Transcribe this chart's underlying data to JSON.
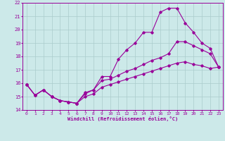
{
  "xlabel": "Windchill (Refroidissement éolien,°C)",
  "ylabel": "",
  "bg_color": "#cce9e9",
  "grid_color": "#aacccc",
  "line_color": "#990099",
  "xlim": [
    -0.5,
    23.5
  ],
  "ylim": [
    14,
    22
  ],
  "xticks": [
    0,
    1,
    2,
    3,
    4,
    5,
    6,
    7,
    8,
    9,
    10,
    11,
    12,
    13,
    14,
    15,
    16,
    17,
    18,
    19,
    20,
    21,
    22,
    23
  ],
  "yticks": [
    14,
    15,
    16,
    17,
    18,
    19,
    20,
    21,
    22
  ],
  "line1_x": [
    0,
    1,
    2,
    3,
    4,
    5,
    6,
    7,
    8,
    9,
    10,
    11,
    12,
    13,
    14,
    15,
    16,
    17,
    18,
    19,
    20,
    21,
    22,
    23
  ],
  "line1_y": [
    15.9,
    15.1,
    15.5,
    15.0,
    14.7,
    14.6,
    14.5,
    15.3,
    15.5,
    16.5,
    16.5,
    17.8,
    18.5,
    19.0,
    19.8,
    19.8,
    21.3,
    21.6,
    21.6,
    20.5,
    19.8,
    19.0,
    18.6,
    17.2
  ],
  "line2_x": [
    0,
    1,
    2,
    3,
    4,
    5,
    6,
    7,
    8,
    9,
    10,
    11,
    12,
    13,
    14,
    15,
    16,
    17,
    18,
    19,
    20,
    21,
    22,
    23
  ],
  "line2_y": [
    15.9,
    15.1,
    15.5,
    15.0,
    14.7,
    14.6,
    14.5,
    15.2,
    15.5,
    16.2,
    16.3,
    16.6,
    16.9,
    17.1,
    17.4,
    17.7,
    17.9,
    18.2,
    19.1,
    19.1,
    18.8,
    18.5,
    18.2,
    17.2
  ],
  "line3_x": [
    0,
    1,
    2,
    3,
    4,
    5,
    6,
    7,
    8,
    9,
    10,
    11,
    12,
    13,
    14,
    15,
    16,
    17,
    18,
    19,
    20,
    21,
    22,
    23
  ],
  "line3_y": [
    15.9,
    15.1,
    15.5,
    15.0,
    14.7,
    14.6,
    14.5,
    15.0,
    15.2,
    15.7,
    15.9,
    16.1,
    16.3,
    16.5,
    16.7,
    16.9,
    17.1,
    17.3,
    17.5,
    17.6,
    17.4,
    17.3,
    17.1,
    17.2
  ]
}
